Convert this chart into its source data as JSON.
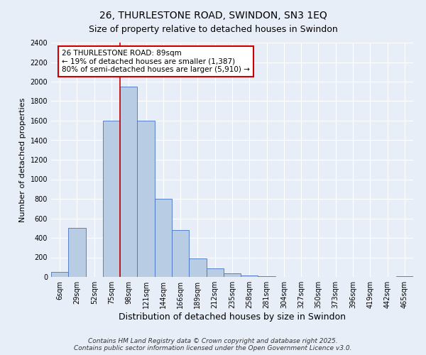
{
  "title": "26, THURLESTONE ROAD, SWINDON, SN3 1EQ",
  "subtitle": "Size of property relative to detached houses in Swindon",
  "xlabel": "Distribution of detached houses by size in Swindon",
  "ylabel": "Number of detached properties",
  "bar_labels": [
    "6sqm",
    "29sqm",
    "52sqm",
    "75sqm",
    "98sqm",
    "121sqm",
    "144sqm",
    "166sqm",
    "189sqm",
    "212sqm",
    "235sqm",
    "258sqm",
    "281sqm",
    "304sqm",
    "327sqm",
    "350sqm",
    "373sqm",
    "396sqm",
    "419sqm",
    "442sqm",
    "465sqm"
  ],
  "bar_values": [
    50,
    500,
    0,
    1600,
    1950,
    1600,
    800,
    480,
    190,
    90,
    35,
    15,
    5,
    0,
    0,
    0,
    0,
    0,
    0,
    0,
    10
  ],
  "bar_color": "#b8cce4",
  "bar_edge_color": "#4472c4",
  "red_line_x": 3.5,
  "red_line_color": "#cc0000",
  "ylim": [
    0,
    2400
  ],
  "yticks": [
    0,
    200,
    400,
    600,
    800,
    1000,
    1200,
    1400,
    1600,
    1800,
    2000,
    2200,
    2400
  ],
  "annotation_box_text": "26 THURLESTONE ROAD: 89sqm\n← 19% of detached houses are smaller (1,387)\n80% of semi-detached houses are larger (5,910) →",
  "annotation_box_color": "#ffffff",
  "annotation_box_edge_color": "#cc0000",
  "footer_line1": "Contains HM Land Registry data © Crown copyright and database right 2025.",
  "footer_line2": "Contains public sector information licensed under the Open Government Licence v3.0.",
  "background_color": "#e8eef8",
  "grid_color": "#ffffff",
  "title_fontsize": 10,
  "subtitle_fontsize": 9,
  "xlabel_fontsize": 9,
  "ylabel_fontsize": 8,
  "annot_fontsize": 7.5,
  "tick_fontsize": 7,
  "footer_fontsize": 6.5
}
